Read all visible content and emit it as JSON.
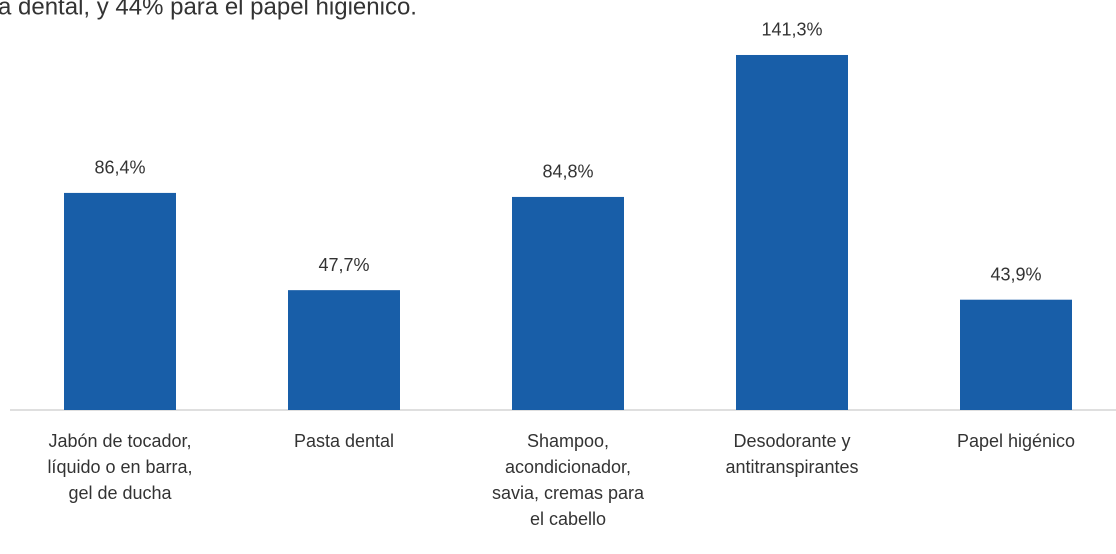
{
  "chart_data": {
    "type": "bar",
    "title": "a dental, y 44% para el papel higiénico.",
    "categories": [
      "Jabón de tocador,\nlíquido o en barra,\ngel de ducha",
      "Pasta dental",
      "Shampoo,\nacondicionador,\nsavia, cremas para\nel cabello",
      "Desodorante y\nantitranspirantes",
      "Papel higénico"
    ],
    "values": [
      86.4,
      47.7,
      84.8,
      141.3,
      43.9
    ],
    "value_labels": [
      "86,4%",
      "47,7%",
      "84,8%",
      "141,3%",
      "43,9%"
    ],
    "color": "#185ea8",
    "ylim": [
      0,
      160
    ]
  }
}
